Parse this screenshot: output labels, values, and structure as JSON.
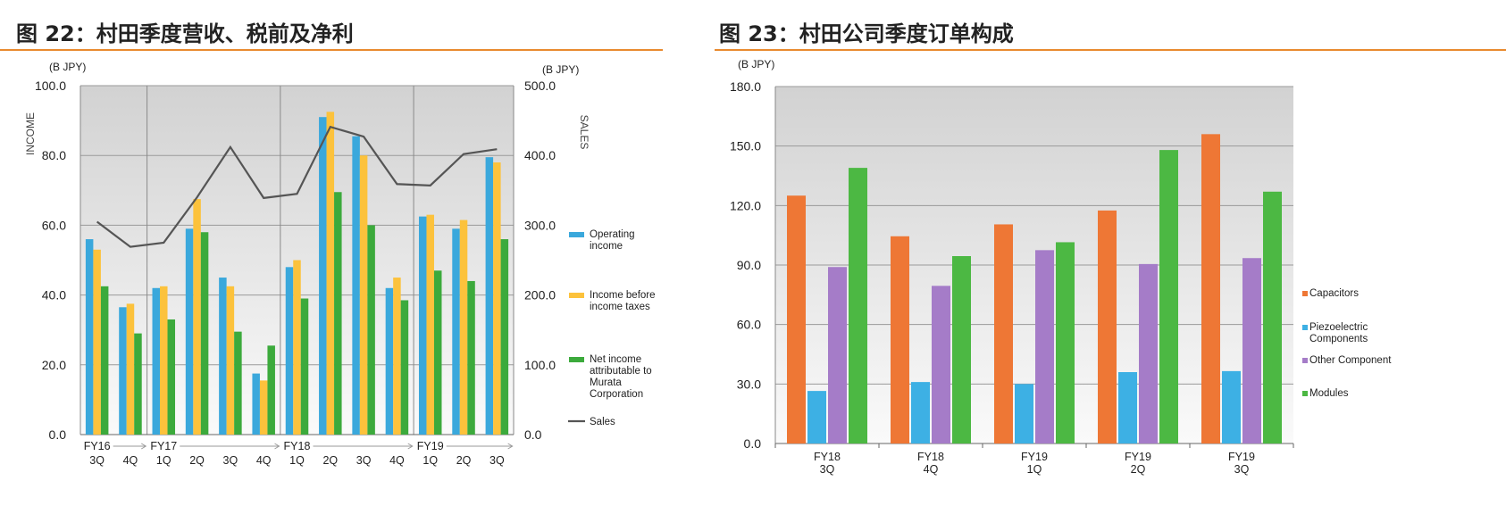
{
  "left": {
    "title": "图 22：村田季度营收、税前及净利",
    "chart_data": {
      "type": "bar",
      "unit_left": "(B JPY)",
      "unit_right": "(B JPY)",
      "ylabel": "INCOME",
      "y2label": "SALES",
      "ylim": [
        0,
        100
      ],
      "y2lim": [
        0,
        500
      ],
      "yticks": [
        "0.0",
        "20.0",
        "40.0",
        "60.0",
        "80.0",
        "100.0"
      ],
      "y2ticks": [
        "0.0",
        "100.0",
        "200.0",
        "300.0",
        "400.0",
        "500.0"
      ],
      "categories": [
        {
          "fy": "FY16",
          "q": "3Q"
        },
        {
          "fy": "",
          "q": "4Q"
        },
        {
          "fy": "FY17",
          "q": "1Q"
        },
        {
          "fy": "",
          "q": "2Q"
        },
        {
          "fy": "",
          "q": "3Q"
        },
        {
          "fy": "",
          "q": "4Q"
        },
        {
          "fy": "FY18",
          "q": "1Q"
        },
        {
          "fy": "",
          "q": "2Q"
        },
        {
          "fy": "",
          "q": "3Q"
        },
        {
          "fy": "",
          "q": "4Q"
        },
        {
          "fy": "FY19",
          "q": "1Q"
        },
        {
          "fy": "",
          "q": "2Q"
        },
        {
          "fy": "",
          "q": "3Q"
        }
      ],
      "series": [
        {
          "name": "Operating income",
          "label_lines": [
            "Operating",
            "income"
          ],
          "color": "#3aa8dc",
          "values": [
            56.0,
            36.5,
            42.0,
            59.0,
            45.0,
            17.5,
            48.0,
            91.0,
            85.5,
            42.0,
            62.5,
            59.0,
            79.5
          ]
        },
        {
          "name": "Income before income taxes",
          "label_lines": [
            "Income before",
            "income taxes"
          ],
          "color": "#fcc23c",
          "values": [
            53.0,
            37.5,
            42.5,
            67.5,
            42.5,
            15.5,
            50.0,
            92.5,
            80.0,
            45.0,
            63.0,
            61.5,
            78.0
          ]
        },
        {
          "name": "Net income attributable to Murata Corporation",
          "label_lines": [
            "Net income",
            "attributable to",
            "Murata",
            "Corporation"
          ],
          "color": "#3caa3c",
          "values": [
            42.5,
            29.0,
            33.0,
            58.0,
            29.5,
            25.5,
            39.0,
            69.5,
            60.0,
            38.5,
            47.0,
            44.0,
            56.0
          ]
        }
      ],
      "line_series": {
        "name": "Sales",
        "color": "#555555",
        "axis": "right",
        "values": [
          305,
          269,
          275,
          340,
          412,
          339,
          345,
          441,
          427,
          359,
          357,
          402,
          409
        ]
      }
    }
  },
  "right": {
    "title": "图 23：村田公司季度订单构成",
    "chart_data": {
      "type": "bar",
      "unit": "(B JPY)",
      "ylim": [
        0,
        180
      ],
      "yticks": [
        "0.0",
        "30.0",
        "60.0",
        "90.0",
        "120.0",
        "150.0",
        "180.0"
      ],
      "categories": [
        {
          "fy": "FY18",
          "q": "3Q"
        },
        {
          "fy": "FY18",
          "q": "4Q"
        },
        {
          "fy": "FY19",
          "q": "1Q"
        },
        {
          "fy": "FY19",
          "q": "2Q"
        },
        {
          "fy": "FY19",
          "q": "3Q"
        }
      ],
      "series": [
        {
          "name": "Capacitors",
          "label_lines": [
            "Capacitors"
          ],
          "color": "#ee7735",
          "values": [
            125.0,
            104.5,
            110.5,
            117.5,
            156.0
          ]
        },
        {
          "name": "Piezoelectric Components",
          "label_lines": [
            "Piezoelectric",
            "Components"
          ],
          "color": "#3db0e4",
          "values": [
            26.5,
            31.0,
            30.0,
            36.0,
            36.5
          ]
        },
        {
          "name": "Other Component",
          "label_lines": [
            "Other Component"
          ],
          "color": "#a57cc8",
          "values": [
            89.0,
            79.5,
            97.5,
            90.5,
            93.5
          ]
        },
        {
          "name": "Modules",
          "label_lines": [
            "Modules"
          ],
          "color": "#4cb843",
          "values": [
            139.0,
            94.5,
            101.5,
            148.0,
            127.0
          ]
        }
      ]
    }
  }
}
